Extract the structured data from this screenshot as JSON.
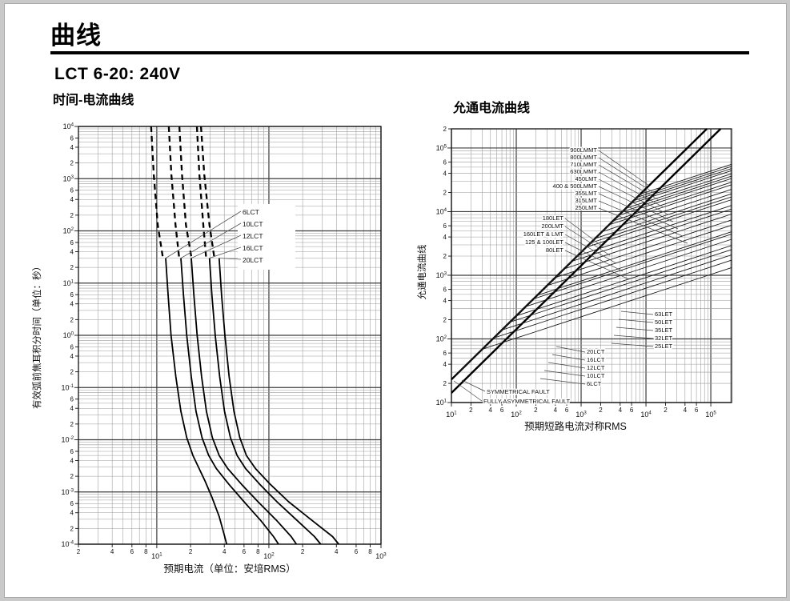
{
  "page": {
    "title": "曲线",
    "model": "LCT 6-20: 240V",
    "left_chart_title": "时间-电流曲线",
    "right_chart_title": "允通电流曲线"
  },
  "chart_data": [
    {
      "type": "line",
      "id": "time-current",
      "title": "时间-电流曲线",
      "xlabel": "预期电流（单位：安培RMS）",
      "ylabel": "有效弧前焦耳积分时间（单位：秒）",
      "xlim": [
        2,
        1000
      ],
      "ylim": [
        0.0001,
        10000
      ],
      "grid": true,
      "x_ticks": [
        {
          "v": 2,
          "l": "2"
        },
        {
          "v": 4,
          "l": "4"
        },
        {
          "v": 6,
          "l": "6"
        },
        {
          "v": 8,
          "l": "8"
        },
        {
          "v": 10,
          "l": "10^1",
          "major": true
        },
        {
          "v": 20,
          "l": "2"
        },
        {
          "v": 40,
          "l": "4"
        },
        {
          "v": 60,
          "l": "6"
        },
        {
          "v": 80,
          "l": "8"
        },
        {
          "v": 100,
          "l": "10^2",
          "major": true
        },
        {
          "v": 200,
          "l": "2"
        },
        {
          "v": 400,
          "l": "4"
        },
        {
          "v": 600,
          "l": "6"
        },
        {
          "v": 800,
          "l": "8"
        },
        {
          "v": 1000,
          "l": "10^3",
          "major": true
        }
      ],
      "y_ticks": [
        {
          "v": 10000,
          "l": "10^4",
          "major": true
        },
        {
          "v": 6000,
          "l": "6"
        },
        {
          "v": 4000,
          "l": "4"
        },
        {
          "v": 2000,
          "l": "2"
        },
        {
          "v": 1000,
          "l": "10^3",
          "major": true
        },
        {
          "v": 600,
          "l": "6"
        },
        {
          "v": 400,
          "l": "4"
        },
        {
          "v": 200,
          "l": "2"
        },
        {
          "v": 100,
          "l": "10^2",
          "major": true
        },
        {
          "v": 60,
          "l": "6"
        },
        {
          "v": 40,
          "l": "4"
        },
        {
          "v": 20,
          "l": "2"
        },
        {
          "v": 10,
          "l": "10^1",
          "major": true
        },
        {
          "v": 6,
          "l": "6"
        },
        {
          "v": 4,
          "l": "4"
        },
        {
          "v": 2,
          "l": "2"
        },
        {
          "v": 1,
          "l": "10^0",
          "major": true
        },
        {
          "v": 0.6,
          "l": "6"
        },
        {
          "v": 0.4,
          "l": "4"
        },
        {
          "v": 0.2,
          "l": "2"
        },
        {
          "v": 0.1,
          "l": "10^-1",
          "major": true
        },
        {
          "v": 0.06,
          "l": "6"
        },
        {
          "v": 0.04,
          "l": "4"
        },
        {
          "v": 0.02,
          "l": "2"
        },
        {
          "v": 0.01,
          "l": "10^-2",
          "major": true
        },
        {
          "v": 0.006,
          "l": "6"
        },
        {
          "v": 0.004,
          "l": "4"
        },
        {
          "v": 0.002,
          "l": "2"
        },
        {
          "v": 0.001,
          "l": "10^-3",
          "major": true
        },
        {
          "v": 0.0006,
          "l": "6"
        },
        {
          "v": 0.0004,
          "l": "4"
        },
        {
          "v": 0.0002,
          "l": "2"
        },
        {
          "v": 0.0001,
          "l": "10^-4",
          "major": true
        }
      ],
      "series": [
        {
          "name": "6LCT",
          "dash": [
            [
              8.9,
              10000
            ],
            [
              9.4,
              1200
            ],
            [
              10.2,
              130
            ],
            [
              11.3,
              32
            ]
          ],
          "solid": [
            [
              12,
              30
            ],
            [
              12.6,
              6
            ],
            [
              13.4,
              1
            ],
            [
              14.8,
              0.16
            ],
            [
              16.4,
              0.035
            ],
            [
              18.5,
              0.011
            ],
            [
              21,
              0.005
            ],
            [
              23.5,
              0.003
            ],
            [
              27,
              0.0016
            ],
            [
              31,
              0.0008
            ],
            [
              36,
              0.00034
            ],
            [
              40,
              0.00015
            ],
            [
              42,
              0.0001
            ]
          ]
        },
        {
          "name": "10LCT",
          "dash": [
            [
              12.8,
              10000
            ],
            [
              13.5,
              1200
            ],
            [
              14.7,
              130
            ],
            [
              15.8,
              32
            ]
          ],
          "solid": [
            [
              16.4,
              30
            ],
            [
              17.3,
              6
            ],
            [
              18.5,
              1
            ],
            [
              20.3,
              0.16
            ],
            [
              22.4,
              0.035
            ],
            [
              25.3,
              0.011
            ],
            [
              29,
              0.005
            ],
            [
              34,
              0.0028
            ],
            [
              44,
              0.0014
            ],
            [
              60,
              0.00065
            ],
            [
              85,
              0.00028
            ],
            [
              110,
              0.00014
            ],
            [
              122,
              0.0001
            ]
          ]
        },
        {
          "name": "12LCT",
          "dash": [
            [
              15.9,
              10000
            ],
            [
              16.8,
              1200
            ],
            [
              18.2,
              130
            ],
            [
              20.3,
              32
            ]
          ],
          "solid": [
            [
              20.3,
              30
            ],
            [
              21.4,
              6
            ],
            [
              22.9,
              1
            ],
            [
              25.1,
              0.16
            ],
            [
              27.7,
              0.035
            ],
            [
              31.3,
              0.011
            ],
            [
              36,
              0.005
            ],
            [
              43,
              0.0028
            ],
            [
              57,
              0.0014
            ],
            [
              80,
              0.00065
            ],
            [
              118,
              0.00028
            ],
            [
              158,
              0.00014
            ],
            [
              176,
              0.0001
            ]
          ]
        },
        {
          "name": "16LCT",
          "dash": [
            [
              22.8,
              10000
            ],
            [
              24,
              1200
            ],
            [
              26,
              130
            ],
            [
              27.5,
              32
            ]
          ],
          "solid": [
            [
              29.5,
              30
            ],
            [
              31,
              6
            ],
            [
              33.2,
              1
            ],
            [
              36.4,
              0.16
            ],
            [
              40.2,
              0.035
            ],
            [
              45.4,
              0.011
            ],
            [
              52,
              0.005
            ],
            [
              62,
              0.0028
            ],
            [
              83,
              0.0014
            ],
            [
              118,
              0.00065
            ],
            [
              180,
              0.00028
            ],
            [
              255,
              0.00014
            ],
            [
              290,
              0.0001
            ]
          ]
        },
        {
          "name": "20LCT",
          "dash": [
            [
              24.8,
              10000
            ],
            [
              26.5,
              1200
            ],
            [
              29.5,
              130
            ],
            [
              32.5,
              32
            ]
          ],
          "solid": [
            [
              36,
              30
            ],
            [
              37.8,
              6
            ],
            [
              40.5,
              1
            ],
            [
              44.2,
              0.16
            ],
            [
              48.8,
              0.035
            ],
            [
              55,
              0.011
            ],
            [
              63,
              0.005
            ],
            [
              76,
              0.0028
            ],
            [
              103,
              0.0014
            ],
            [
              150,
              0.00065
            ],
            [
              245,
              0.00028
            ],
            [
              370,
              0.00014
            ],
            [
              420,
              0.0001
            ]
          ]
        }
      ],
      "series_labels": [
        "6LCT",
        "10LCT",
        "12LCT",
        "16LCT",
        "20LCT"
      ]
    },
    {
      "type": "line",
      "id": "let-through",
      "title": "允通电流曲线",
      "xlabel": "预期短路电流对称RMS",
      "ylabel": "允通电流曲线",
      "xlim": [
        10,
        209000
      ],
      "ylim": [
        10,
        200000
      ],
      "grid": true,
      "x_ticks": [
        {
          "v": 10,
          "l": "10^1",
          "major": true
        },
        {
          "v": 20,
          "l": "2"
        },
        {
          "v": 40,
          "l": "4"
        },
        {
          "v": 60,
          "l": "6"
        },
        {
          "v": 100,
          "l": "10^2",
          "major": true
        },
        {
          "v": 200,
          "l": "2"
        },
        {
          "v": 400,
          "l": "4"
        },
        {
          "v": 600,
          "l": "6"
        },
        {
          "v": 1000,
          "l": "10^3",
          "major": true
        },
        {
          "v": 2000,
          "l": "2"
        },
        {
          "v": 4000,
          "l": "4"
        },
        {
          "v": 6000,
          "l": "6"
        },
        {
          "v": 10000,
          "l": "10^4",
          "major": true
        },
        {
          "v": 20000,
          "l": "2"
        },
        {
          "v": 40000,
          "l": "4"
        },
        {
          "v": 60000,
          "l": "6"
        },
        {
          "v": 100000,
          "l": "10^5",
          "major": true
        }
      ],
      "y_ticks": [
        {
          "v": 200000,
          "l": "2"
        },
        {
          "v": 100000,
          "l": "10^5",
          "major": true
        },
        {
          "v": 60000,
          "l": "6"
        },
        {
          "v": 40000,
          "l": "4"
        },
        {
          "v": 20000,
          "l": "2"
        },
        {
          "v": 10000,
          "l": "10^4",
          "major": true
        },
        {
          "v": 6000,
          "l": "6"
        },
        {
          "v": 4000,
          "l": "4"
        },
        {
          "v": 2000,
          "l": "2"
        },
        {
          "v": 1000,
          "l": "10^3",
          "major": true
        },
        {
          "v": 600,
          "l": "6"
        },
        {
          "v": 400,
          "l": "4"
        },
        {
          "v": 200,
          "l": "2"
        },
        {
          "v": 100,
          "l": "10^2",
          "major": true
        },
        {
          "v": 60,
          "l": "6"
        },
        {
          "v": 40,
          "l": "4"
        },
        {
          "v": 20,
          "l": "2"
        },
        {
          "v": 10,
          "l": "10^1",
          "major": true
        }
      ],
      "fault_lines": [
        {
          "name": "SYMMETRICAL FAULT",
          "mult": 1.414
        },
        {
          "name": "FULLY ASYMMETRICAL FAULT",
          "mult": 2.3
        }
      ],
      "let_through_model": {
        "coef": 2.3,
        "exponent": 0.3333
      },
      "curves": [
        {
          "name": "6LCT",
          "threshold": 30
        },
        {
          "name": "10LCT",
          "threshold": 45
        },
        {
          "name": "12LCT",
          "threshold": 60
        },
        {
          "name": "16LCT",
          "threshold": 80
        },
        {
          "name": "20LCT",
          "threshold": 100
        },
        {
          "name": "25LET",
          "threshold": 140
        },
        {
          "name": "32LET",
          "threshold": 185
        },
        {
          "name": "35LET",
          "threshold": 210
        },
        {
          "name": "50LET",
          "threshold": 300
        },
        {
          "name": "63LET",
          "threshold": 400
        },
        {
          "name": "80LET",
          "threshold": 550
        },
        {
          "name": "100LET",
          "threshold": 720
        },
        {
          "name": "125LET",
          "threshold": 880
        },
        {
          "name": "160LET & LMT",
          "threshold": 1200
        },
        {
          "name": "180LET",
          "threshold": 1400
        },
        {
          "name": "200LMT",
          "threshold": 1650
        },
        {
          "name": "250LMT",
          "threshold": 2100
        },
        {
          "name": "315LMT",
          "threshold": 2700
        },
        {
          "name": "355LMT",
          "threshold": 3100
        },
        {
          "name": "400LMMT",
          "threshold": 3800
        },
        {
          "name": "450LMT",
          "threshold": 4300
        },
        {
          "name": "500LMMT",
          "threshold": 4900
        },
        {
          "name": "630LMMT",
          "threshold": 5800
        },
        {
          "name": "710LMMT",
          "threshold": 6500
        },
        {
          "name": "800LMMT",
          "threshold": 7300
        },
        {
          "name": "900LMMT",
          "threshold": 8200
        }
      ],
      "label_groups": [
        {
          "anchor": "end",
          "x": 235,
          "y0": 45,
          "dy": 9,
          "lx0": 300,
          "ldx": 6,
          "lyd": 42,
          "items": [
            "900LMMT",
            "800LMMT",
            "710LMMT",
            "630LMMT",
            "450LMT",
            "400 & 500LMMT",
            "355LMT",
            "315LMT",
            "250LMT"
          ]
        },
        {
          "anchor": "end",
          "x": 193,
          "y0": 130,
          "dy": 10,
          "lx0": 243,
          "ldx": 8,
          "lyd": 34,
          "items": [
            "180LET",
            "200LMT",
            "160LET & LMT",
            "125 & 100LET",
            "80LET"
          ]
        },
        {
          "anchor": "start",
          "x": 307,
          "y0": 250,
          "dy": 10,
          "lx0": 265,
          "ldx": -3,
          "lyd": -6,
          "items": [
            "63LET",
            "50LET",
            "35LET",
            "32LET",
            "25LET"
          ]
        },
        {
          "anchor": "start",
          "x": 222,
          "y0": 297,
          "dy": 10,
          "lx0": 184,
          "ldx": -5,
          "lyd": -9,
          "items": [
            "20LCT",
            "16LCT",
            "12LCT",
            "10LCT",
            "6LCT"
          ]
        }
      ],
      "fault_labels": [
        {
          "text": "SYMMETRICAL FAULT",
          "x": 97,
          "y": 347,
          "tx": 66,
          "ty": 330
        },
        {
          "text": "FULLY ASYMMETRICAL FAULT",
          "x": 93,
          "y": 359,
          "tx": 56,
          "ty": 331
        }
      ]
    }
  ]
}
